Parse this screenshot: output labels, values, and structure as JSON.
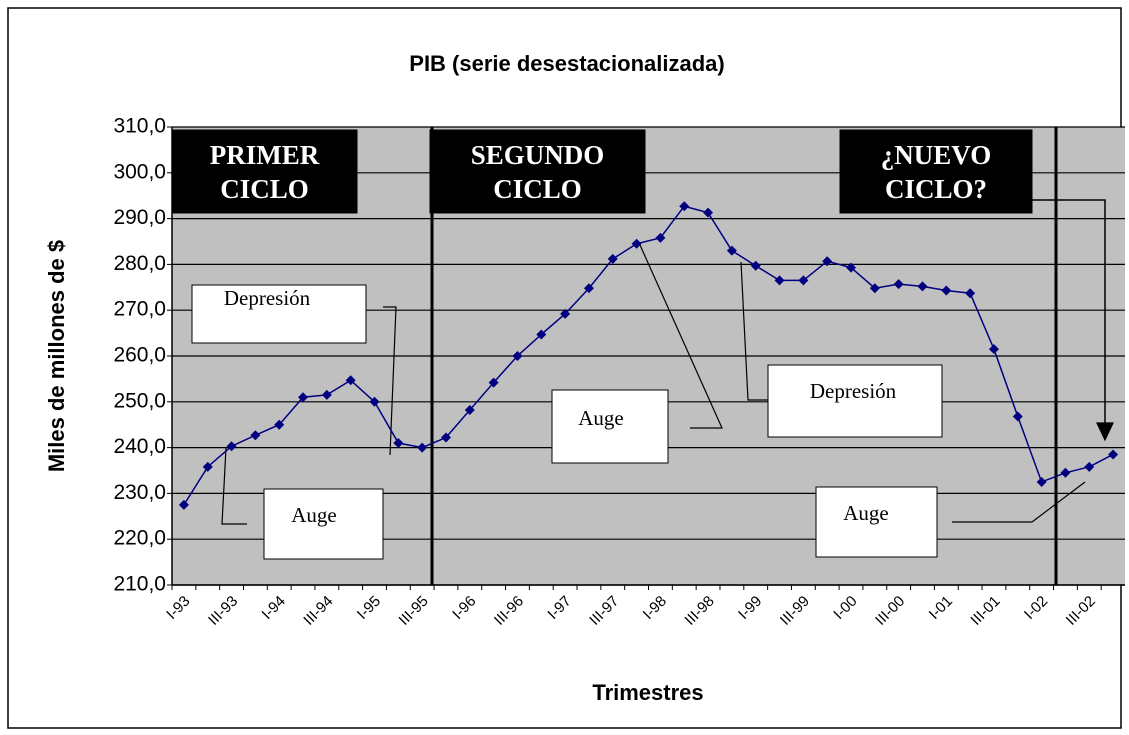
{
  "chart_data": {
    "type": "line",
    "title": "PIB (serie desestacionalizada)",
    "y_label": "Miles de millones de $",
    "x_label": "Trimestres",
    "categories": [
      "I-93",
      null,
      "III-93",
      null,
      "I-94",
      null,
      "III-94",
      null,
      "I-95",
      null,
      "III-95",
      null,
      "I-96",
      null,
      "III-96",
      null,
      "I-97",
      null,
      "III-97",
      null,
      "I-98",
      null,
      "III-98",
      null,
      "I-99",
      null,
      "III-99",
      null,
      "I-00",
      null,
      "III-00",
      null,
      "I-01",
      null,
      "III-01",
      null,
      "I-02",
      null,
      "III-02",
      null
    ],
    "series": [
      {
        "name": "PIB",
        "color": "#000080",
        "values": [
          227.5,
          235.8,
          240.3,
          242.7,
          245.0,
          251.0,
          251.5,
          254.7,
          250.0,
          241.0,
          240.0,
          242.2,
          248.2,
          254.2,
          260.0,
          264.7,
          269.2,
          274.8,
          281.2,
          284.5,
          285.8,
          292.7,
          291.3,
          283.0,
          279.7,
          276.5,
          276.5,
          280.7,
          279.3,
          274.8,
          275.7,
          275.2,
          274.3,
          273.7,
          261.5,
          246.8,
          232.5,
          234.5,
          235.8,
          238.5
        ]
      }
    ],
    "ylim": [
      210,
      310
    ],
    "yticks": [
      {
        "value": 210,
        "label": "210,0"
      },
      {
        "value": 220,
        "label": "220,0"
      },
      {
        "value": 230,
        "label": "230,0"
      },
      {
        "value": 240,
        "label": "240,0"
      },
      {
        "value": 250,
        "label": "250,0"
      },
      {
        "value": 260,
        "label": "260,0"
      },
      {
        "value": 270,
        "label": "270,0"
      },
      {
        "value": 280,
        "label": "280,0"
      },
      {
        "value": 290,
        "label": "290,0"
      },
      {
        "value": 300,
        "label": "300,0"
      },
      {
        "value": 310,
        "label": "310,0"
      }
    ],
    "grid": true,
    "annotations": [
      {
        "lines": [
          "PRIMER",
          "CICLO"
        ]
      },
      {
        "lines": [
          "SEGUNDO",
          "CICLO"
        ]
      },
      {
        "lines": [
          "¿NUEVO",
          "CICLO?"
        ]
      },
      {
        "lines": [
          "Depresión"
        ]
      },
      {
        "lines": [
          "Auge"
        ]
      },
      {
        "lines": [
          "Auge"
        ]
      },
      {
        "lines": [
          "Depresión"
        ]
      },
      {
        "lines": [
          "Auge"
        ]
      }
    ]
  }
}
